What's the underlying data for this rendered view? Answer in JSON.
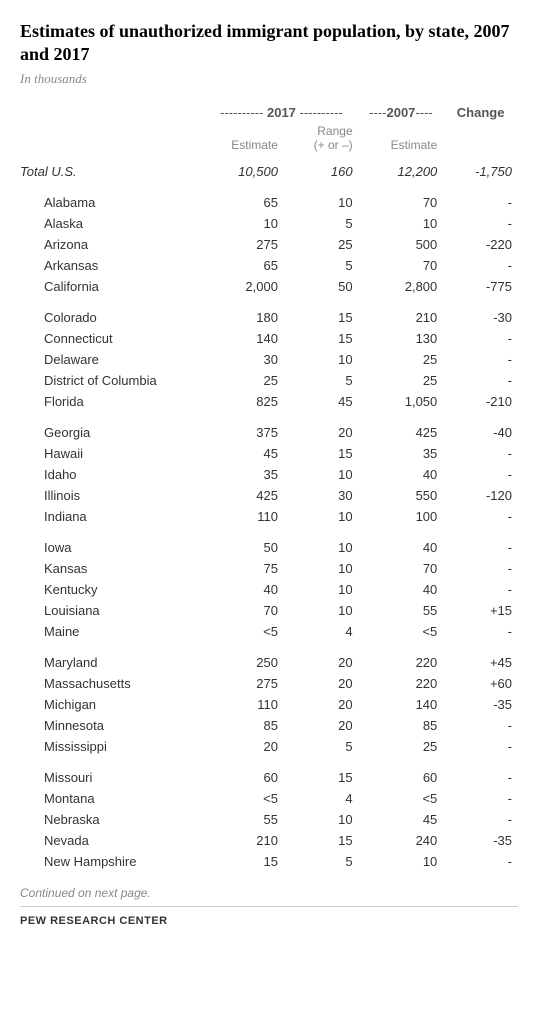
{
  "title": "Estimates of unauthorized immigrant population, by state, 2007 and 2017",
  "subtitle": "In thousands",
  "header": {
    "year2017": "2017",
    "year2007": "2007",
    "change": "Change",
    "estimate": "Estimate",
    "range": "Range\n(+ or –)"
  },
  "total": {
    "label": "Total U.S.",
    "est2017": "10,500",
    "range": "160",
    "est2007": "12,200",
    "change": "-1,750"
  },
  "groups": [
    [
      {
        "name": "Alabama",
        "est2017": "65",
        "range": "10",
        "est2007": "70",
        "change": "-"
      },
      {
        "name": "Alaska",
        "est2017": "10",
        "range": "5",
        "est2007": "10",
        "change": "-"
      },
      {
        "name": "Arizona",
        "est2017": "275",
        "range": "25",
        "est2007": "500",
        "change": "-220"
      },
      {
        "name": "Arkansas",
        "est2017": "65",
        "range": "5",
        "est2007": "70",
        "change": "-"
      },
      {
        "name": "California",
        "est2017": "2,000",
        "range": "50",
        "est2007": "2,800",
        "change": "-775"
      }
    ],
    [
      {
        "name": "Colorado",
        "est2017": "180",
        "range": "15",
        "est2007": "210",
        "change": "-30"
      },
      {
        "name": "Connecticut",
        "est2017": "140",
        "range": "15",
        "est2007": "130",
        "change": "-"
      },
      {
        "name": "Delaware",
        "est2017": "30",
        "range": "10",
        "est2007": "25",
        "change": "-"
      },
      {
        "name": "District of Columbia",
        "est2017": "25",
        "range": "5",
        "est2007": "25",
        "change": "-"
      },
      {
        "name": "Florida",
        "est2017": "825",
        "range": "45",
        "est2007": "1,050",
        "change": "-210"
      }
    ],
    [
      {
        "name": "Georgia",
        "est2017": "375",
        "range": "20",
        "est2007": "425",
        "change": "-40"
      },
      {
        "name": "Hawaii",
        "est2017": "45",
        "range": "15",
        "est2007": "35",
        "change": "-"
      },
      {
        "name": "Idaho",
        "est2017": "35",
        "range": "10",
        "est2007": "40",
        "change": "-"
      },
      {
        "name": "Illinois",
        "est2017": "425",
        "range": "30",
        "est2007": "550",
        "change": "-120"
      },
      {
        "name": "Indiana",
        "est2017": "110",
        "range": "10",
        "est2007": "100",
        "change": "-"
      }
    ],
    [
      {
        "name": "Iowa",
        "est2017": "50",
        "range": "10",
        "est2007": "40",
        "change": "-"
      },
      {
        "name": "Kansas",
        "est2017": "75",
        "range": "10",
        "est2007": "70",
        "change": "-"
      },
      {
        "name": "Kentucky",
        "est2017": "40",
        "range": "10",
        "est2007": "40",
        "change": "-"
      },
      {
        "name": "Louisiana",
        "est2017": "70",
        "range": "10",
        "est2007": "55",
        "change": "+15"
      },
      {
        "name": "Maine",
        "est2017": "<5",
        "range": "4",
        "est2007": "<5",
        "change": "-"
      }
    ],
    [
      {
        "name": "Maryland",
        "est2017": "250",
        "range": "20",
        "est2007": "220",
        "change": "+45"
      },
      {
        "name": "Massachusetts",
        "est2017": "275",
        "range": "20",
        "est2007": "220",
        "change": "+60"
      },
      {
        "name": "Michigan",
        "est2017": "110",
        "range": "20",
        "est2007": "140",
        "change": "-35"
      },
      {
        "name": "Minnesota",
        "est2017": "85",
        "range": "20",
        "est2007": "85",
        "change": "-"
      },
      {
        "name": "Mississippi",
        "est2017": "20",
        "range": "5",
        "est2007": "25",
        "change": "-"
      }
    ],
    [
      {
        "name": "Missouri",
        "est2017": "60",
        "range": "15",
        "est2007": "60",
        "change": "-"
      },
      {
        "name": "Montana",
        "est2017": "<5",
        "range": "4",
        "est2007": "<5",
        "change": "-"
      },
      {
        "name": "Nebraska",
        "est2017": "55",
        "range": "10",
        "est2007": "45",
        "change": "-"
      },
      {
        "name": "Nevada",
        "est2017": "210",
        "range": "15",
        "est2007": "240",
        "change": "-35"
      },
      {
        "name": "New Hampshire",
        "est2017": "15",
        "range": "5",
        "est2007": "10",
        "change": "-"
      }
    ]
  ],
  "footer_note": "Continued on next page.",
  "source": "PEW RESEARCH CENTER",
  "colors": {
    "text": "#333333",
    "muted": "#888888",
    "background": "#ffffff",
    "rule": "#cccccc"
  },
  "typography": {
    "title_fontsize": 18,
    "subtitle_fontsize": 13,
    "body_fontsize": 13,
    "header_fontsize": 12,
    "source_fontsize": 11
  }
}
